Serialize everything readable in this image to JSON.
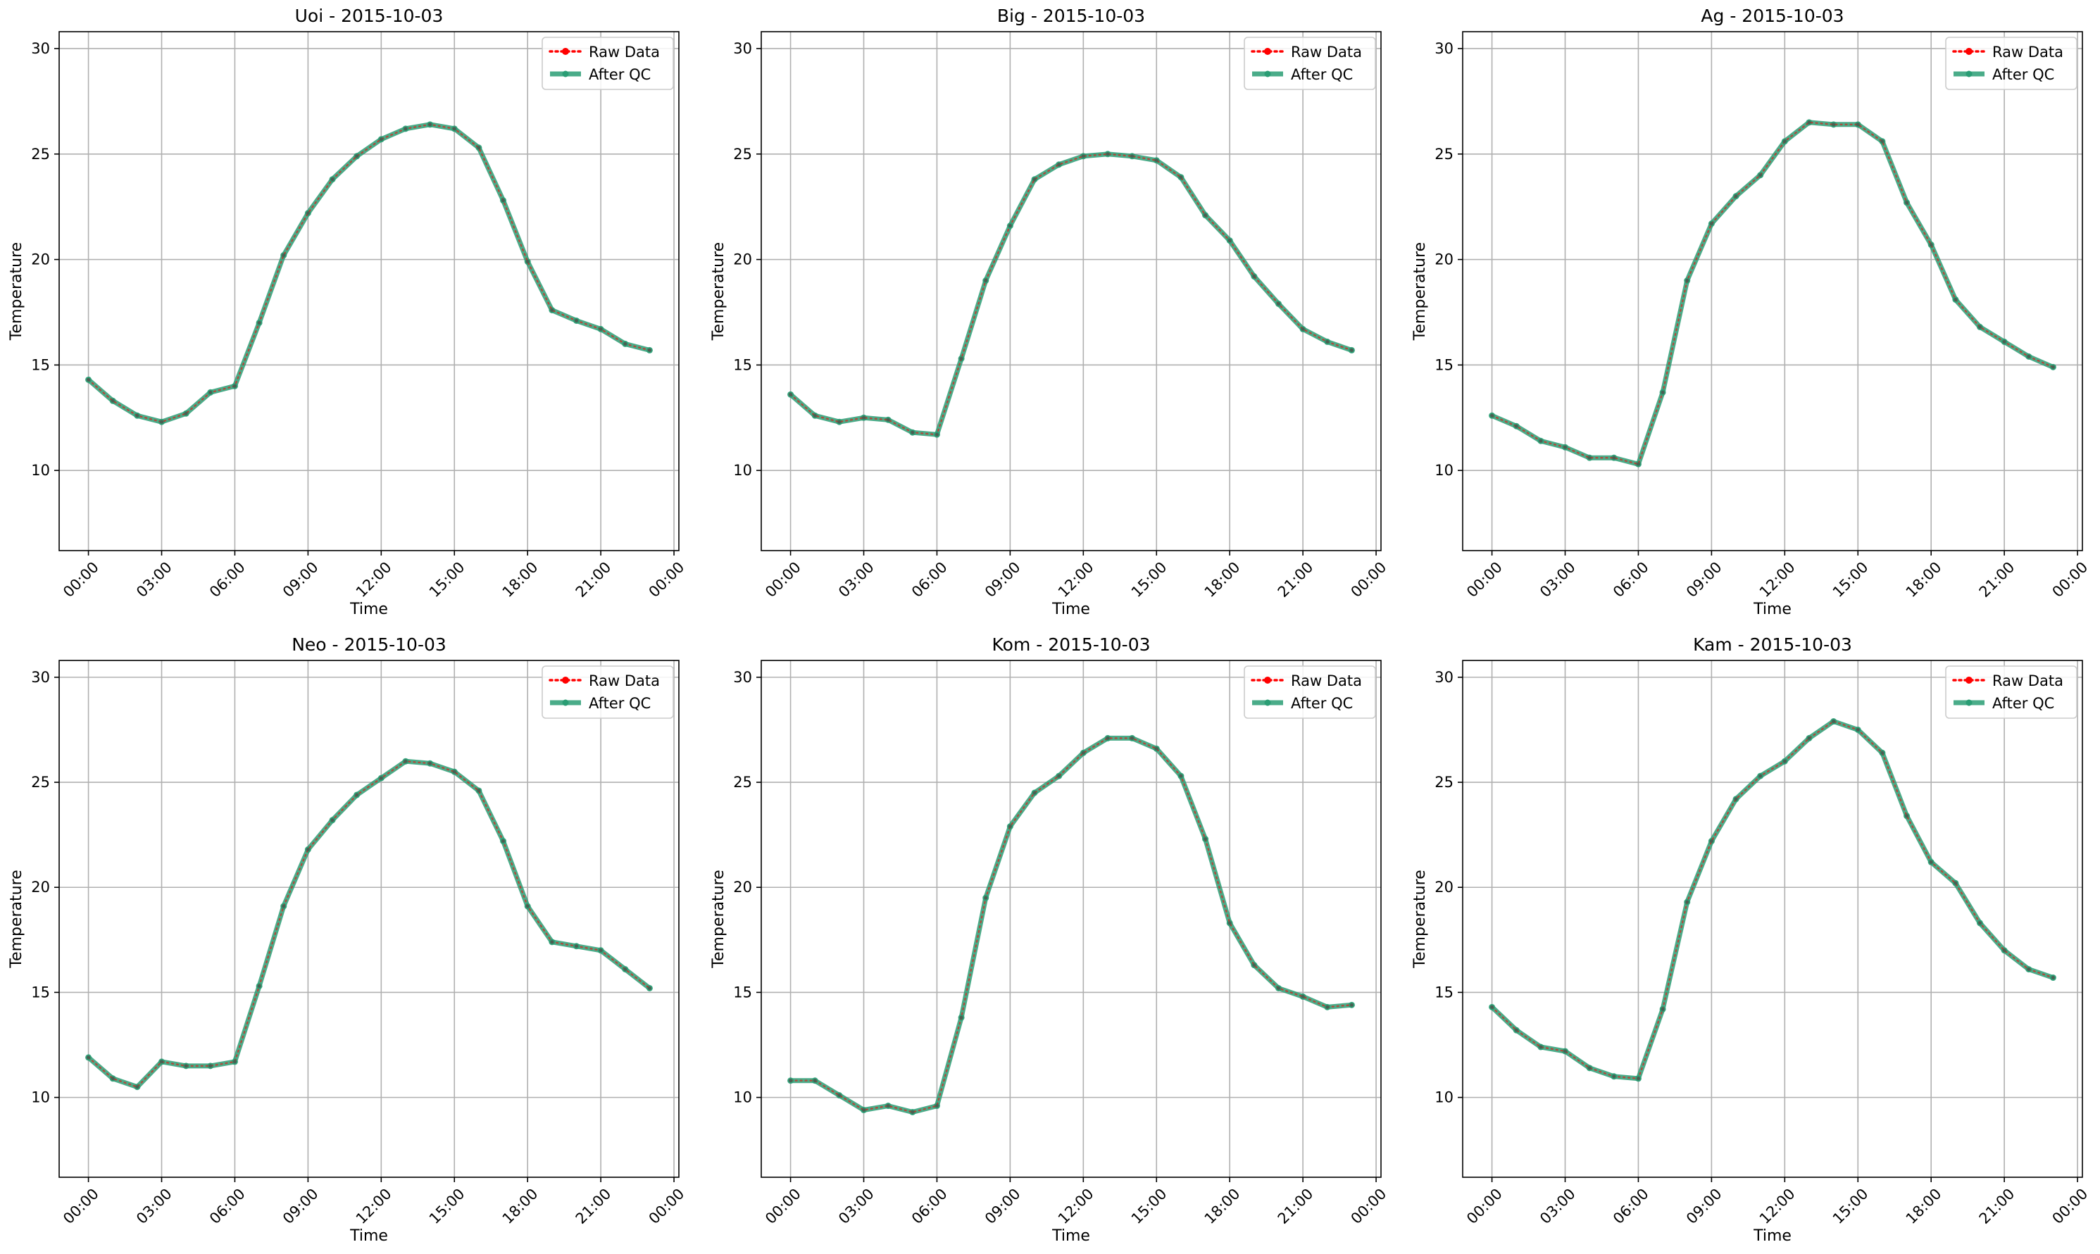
{
  "colors": {
    "raw": "#ff0000",
    "qc": "#2a9d74",
    "axis": "#000000",
    "grid": "#b0b0b0",
    "legend_border": "#cccccc"
  },
  "chart_data": [
    {
      "type": "line",
      "title": "Uoi - 2015-10-03",
      "xlabel": "Time",
      "ylabel": "Temperature",
      "xlim": [
        -1.2,
        24.2
      ],
      "ylim": [
        6.2,
        30.8
      ],
      "xticks": [
        0,
        3,
        6,
        9,
        12,
        15,
        18,
        21,
        24
      ],
      "xtick_labels": [
        "00:00",
        "03:00",
        "06:00",
        "09:00",
        "12:00",
        "15:00",
        "18:00",
        "21:00",
        "00:00"
      ],
      "yticks": [
        10,
        15,
        20,
        25,
        30
      ],
      "ytick_labels": [
        "10",
        "15",
        "20",
        "25",
        "30"
      ],
      "grid": true,
      "legend_position": "top-right",
      "x": [
        0,
        1,
        2,
        3,
        4,
        5,
        6,
        7,
        8,
        9,
        10,
        11,
        12,
        13,
        14,
        15,
        16,
        17,
        18,
        19,
        20,
        21,
        22,
        23
      ],
      "series": [
        {
          "name": "Raw Data",
          "style": "raw",
          "values": [
            14.3,
            13.3,
            12.6,
            12.3,
            12.7,
            13.7,
            14.0,
            17.0,
            20.2,
            22.2,
            23.8,
            24.9,
            25.7,
            26.2,
            26.4,
            26.2,
            25.3,
            22.8,
            19.9,
            17.6,
            17.1,
            16.7,
            16.0,
            15.7
          ]
        },
        {
          "name": "After QC",
          "style": "qc",
          "values": [
            14.3,
            13.3,
            12.6,
            12.3,
            12.7,
            13.7,
            14.0,
            17.0,
            20.2,
            22.2,
            23.8,
            24.9,
            25.7,
            26.2,
            26.4,
            26.2,
            25.3,
            22.8,
            19.9,
            17.6,
            17.1,
            16.7,
            16.0,
            15.7
          ]
        }
      ]
    },
    {
      "type": "line",
      "title": "Big - 2015-10-03",
      "xlabel": "Time",
      "ylabel": "Temperature",
      "xlim": [
        -1.2,
        24.2
      ],
      "ylim": [
        6.2,
        30.8
      ],
      "xticks": [
        0,
        3,
        6,
        9,
        12,
        15,
        18,
        21,
        24
      ],
      "xtick_labels": [
        "00:00",
        "03:00",
        "06:00",
        "09:00",
        "12:00",
        "15:00",
        "18:00",
        "21:00",
        "00:00"
      ],
      "yticks": [
        10,
        15,
        20,
        25,
        30
      ],
      "ytick_labels": [
        "10",
        "15",
        "20",
        "25",
        "30"
      ],
      "grid": true,
      "legend_position": "top-right",
      "x": [
        0,
        1,
        2,
        3,
        4,
        5,
        6,
        7,
        8,
        9,
        10,
        11,
        12,
        13,
        14,
        15,
        16,
        17,
        18,
        19,
        20,
        21,
        22,
        23
      ],
      "series": [
        {
          "name": "Raw Data",
          "style": "raw",
          "values": [
            13.6,
            12.6,
            12.3,
            12.5,
            12.4,
            11.8,
            11.7,
            15.3,
            19.0,
            21.6,
            23.8,
            24.5,
            24.9,
            25.0,
            24.9,
            24.7,
            23.9,
            22.1,
            20.9,
            19.2,
            17.9,
            16.7,
            16.1,
            15.7
          ]
        },
        {
          "name": "After QC",
          "style": "qc",
          "values": [
            13.6,
            12.6,
            12.3,
            12.5,
            12.4,
            11.8,
            11.7,
            15.3,
            19.0,
            21.6,
            23.8,
            24.5,
            24.9,
            25.0,
            24.9,
            24.7,
            23.9,
            22.1,
            20.9,
            19.2,
            17.9,
            16.7,
            16.1,
            15.7
          ]
        }
      ]
    },
    {
      "type": "line",
      "title": "Ag - 2015-10-03",
      "xlabel": "Time",
      "ylabel": "Temperature",
      "xlim": [
        -1.2,
        24.2
      ],
      "ylim": [
        6.2,
        30.8
      ],
      "xticks": [
        0,
        3,
        6,
        9,
        12,
        15,
        18,
        21,
        24
      ],
      "xtick_labels": [
        "00:00",
        "03:00",
        "06:00",
        "09:00",
        "12:00",
        "15:00",
        "18:00",
        "21:00",
        "00:00"
      ],
      "yticks": [
        10,
        15,
        20,
        25,
        30
      ],
      "ytick_labels": [
        "10",
        "15",
        "20",
        "25",
        "30"
      ],
      "grid": true,
      "legend_position": "top-right",
      "x": [
        0,
        1,
        2,
        3,
        4,
        5,
        6,
        7,
        8,
        9,
        10,
        11,
        12,
        13,
        14,
        15,
        16,
        17,
        18,
        19,
        20,
        21,
        22,
        23
      ],
      "series": [
        {
          "name": "Raw Data",
          "style": "raw",
          "values": [
            12.6,
            12.1,
            11.4,
            11.1,
            10.6,
            10.6,
            10.3,
            13.7,
            19.0,
            21.7,
            23.0,
            24.0,
            25.6,
            26.5,
            26.4,
            26.4,
            25.6,
            22.7,
            20.7,
            18.1,
            16.8,
            16.1,
            15.4,
            14.9
          ]
        },
        {
          "name": "After QC",
          "style": "qc",
          "values": [
            12.6,
            12.1,
            11.4,
            11.1,
            10.6,
            10.6,
            10.3,
            13.7,
            19.0,
            21.7,
            23.0,
            24.0,
            25.6,
            26.5,
            26.4,
            26.4,
            25.6,
            22.7,
            20.7,
            18.1,
            16.8,
            16.1,
            15.4,
            14.9
          ]
        }
      ]
    },
    {
      "type": "line",
      "title": "Neo - 2015-10-03",
      "xlabel": "Time",
      "ylabel": "Temperature",
      "xlim": [
        -1.2,
        24.2
      ],
      "ylim": [
        6.2,
        30.8
      ],
      "xticks": [
        0,
        3,
        6,
        9,
        12,
        15,
        18,
        21,
        24
      ],
      "xtick_labels": [
        "00:00",
        "03:00",
        "06:00",
        "09:00",
        "12:00",
        "15:00",
        "18:00",
        "21:00",
        "00:00"
      ],
      "yticks": [
        10,
        15,
        20,
        25,
        30
      ],
      "ytick_labels": [
        "10",
        "15",
        "20",
        "25",
        "30"
      ],
      "grid": true,
      "legend_position": "top-right",
      "x": [
        0,
        1,
        2,
        3,
        4,
        5,
        6,
        7,
        8,
        9,
        10,
        11,
        12,
        13,
        14,
        15,
        16,
        17,
        18,
        19,
        20,
        21,
        22,
        23
      ],
      "series": [
        {
          "name": "Raw Data",
          "style": "raw",
          "values": [
            11.9,
            10.9,
            10.5,
            11.7,
            11.5,
            11.5,
            11.7,
            15.3,
            19.1,
            21.8,
            23.2,
            24.4,
            25.2,
            26.0,
            25.9,
            25.5,
            24.6,
            22.2,
            19.1,
            17.4,
            17.2,
            17.0,
            16.1,
            15.2
          ]
        },
        {
          "name": "After QC",
          "style": "qc",
          "values": [
            11.9,
            10.9,
            10.5,
            11.7,
            11.5,
            11.5,
            11.7,
            15.3,
            19.1,
            21.8,
            23.2,
            24.4,
            25.2,
            26.0,
            25.9,
            25.5,
            24.6,
            22.2,
            19.1,
            17.4,
            17.2,
            17.0,
            16.1,
            15.2
          ]
        }
      ]
    },
    {
      "type": "line",
      "title": "Kom - 2015-10-03",
      "xlabel": "Time",
      "ylabel": "Temperature",
      "xlim": [
        -1.2,
        24.2
      ],
      "ylim": [
        6.2,
        30.8
      ],
      "xticks": [
        0,
        3,
        6,
        9,
        12,
        15,
        18,
        21,
        24
      ],
      "xtick_labels": [
        "00:00",
        "03:00",
        "06:00",
        "09:00",
        "12:00",
        "15:00",
        "18:00",
        "21:00",
        "00:00"
      ],
      "yticks": [
        10,
        15,
        20,
        25,
        30
      ],
      "ytick_labels": [
        "10",
        "15",
        "20",
        "25",
        "30"
      ],
      "grid": true,
      "legend_position": "top-right",
      "x": [
        0,
        1,
        2,
        3,
        4,
        5,
        6,
        7,
        8,
        9,
        10,
        11,
        12,
        13,
        14,
        15,
        16,
        17,
        18,
        19,
        20,
        21,
        22,
        23
      ],
      "series": [
        {
          "name": "Raw Data",
          "style": "raw",
          "values": [
            10.8,
            10.8,
            10.1,
            9.4,
            9.6,
            9.3,
            9.6,
            13.8,
            19.5,
            22.9,
            24.5,
            25.3,
            26.4,
            27.1,
            27.1,
            26.6,
            25.3,
            22.3,
            18.3,
            16.3,
            15.2,
            14.8,
            14.3,
            14.4
          ]
        },
        {
          "name": "After QC",
          "style": "qc",
          "values": [
            10.8,
            10.8,
            10.1,
            9.4,
            9.6,
            9.3,
            9.6,
            13.8,
            19.5,
            22.9,
            24.5,
            25.3,
            26.4,
            27.1,
            27.1,
            26.6,
            25.3,
            22.3,
            18.3,
            16.3,
            15.2,
            14.8,
            14.3,
            14.4
          ]
        }
      ]
    },
    {
      "type": "line",
      "title": "Kam - 2015-10-03",
      "xlabel": "Time",
      "ylabel": "Temperature",
      "xlim": [
        -1.2,
        24.2
      ],
      "ylim": [
        6.2,
        30.8
      ],
      "xticks": [
        0,
        3,
        6,
        9,
        12,
        15,
        18,
        21,
        24
      ],
      "xtick_labels": [
        "00:00",
        "03:00",
        "06:00",
        "09:00",
        "12:00",
        "15:00",
        "18:00",
        "21:00",
        "00:00"
      ],
      "yticks": [
        10,
        15,
        20,
        25,
        30
      ],
      "ytick_labels": [
        "10",
        "15",
        "20",
        "25",
        "30"
      ],
      "grid": true,
      "legend_position": "top-right",
      "x": [
        0,
        1,
        2,
        3,
        4,
        5,
        6,
        7,
        8,
        9,
        10,
        11,
        12,
        13,
        14,
        15,
        16,
        17,
        18,
        19,
        20,
        21,
        22,
        23
      ],
      "series": [
        {
          "name": "Raw Data",
          "style": "raw",
          "values": [
            14.3,
            13.2,
            12.4,
            12.2,
            11.4,
            11.0,
            10.9,
            14.2,
            19.3,
            22.2,
            24.2,
            25.3,
            26.0,
            27.1,
            27.9,
            27.5,
            26.4,
            23.4,
            21.2,
            20.2,
            18.3,
            17.0,
            16.1,
            15.7
          ]
        },
        {
          "name": "After QC",
          "style": "qc",
          "values": [
            14.3,
            13.2,
            12.4,
            12.2,
            11.4,
            11.0,
            10.9,
            14.2,
            19.3,
            22.2,
            24.2,
            25.3,
            26.0,
            27.1,
            27.9,
            27.5,
            26.4,
            23.4,
            21.2,
            20.2,
            18.3,
            17.0,
            16.1,
            15.7
          ]
        }
      ]
    }
  ]
}
